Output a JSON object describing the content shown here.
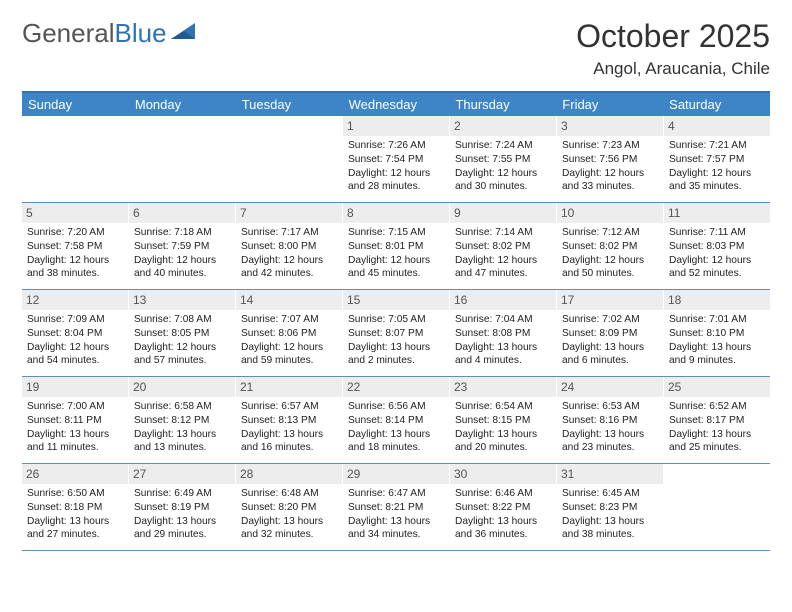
{
  "logo": {
    "text1": "General",
    "text2": "Blue"
  },
  "title": "October 2025",
  "location": "Angol, Araucania, Chile",
  "weekdays": [
    "Sunday",
    "Monday",
    "Tuesday",
    "Wednesday",
    "Thursday",
    "Friday",
    "Saturday"
  ],
  "colors": {
    "header_bar": "#3d85c6",
    "border": "#2e74b5",
    "daynum_bg": "#ededed"
  },
  "weeks": [
    [
      {
        "n": "",
        "empty": true
      },
      {
        "n": "",
        "empty": true
      },
      {
        "n": "",
        "empty": true
      },
      {
        "n": "1",
        "sr": "7:26 AM",
        "ss": "7:54 PM",
        "dl": "12 hours and 28 minutes."
      },
      {
        "n": "2",
        "sr": "7:24 AM",
        "ss": "7:55 PM",
        "dl": "12 hours and 30 minutes."
      },
      {
        "n": "3",
        "sr": "7:23 AM",
        "ss": "7:56 PM",
        "dl": "12 hours and 33 minutes."
      },
      {
        "n": "4",
        "sr": "7:21 AM",
        "ss": "7:57 PM",
        "dl": "12 hours and 35 minutes."
      }
    ],
    [
      {
        "n": "5",
        "sr": "7:20 AM",
        "ss": "7:58 PM",
        "dl": "12 hours and 38 minutes."
      },
      {
        "n": "6",
        "sr": "7:18 AM",
        "ss": "7:59 PM",
        "dl": "12 hours and 40 minutes."
      },
      {
        "n": "7",
        "sr": "7:17 AM",
        "ss": "8:00 PM",
        "dl": "12 hours and 42 minutes."
      },
      {
        "n": "8",
        "sr": "7:15 AM",
        "ss": "8:01 PM",
        "dl": "12 hours and 45 minutes."
      },
      {
        "n": "9",
        "sr": "7:14 AM",
        "ss": "8:02 PM",
        "dl": "12 hours and 47 minutes."
      },
      {
        "n": "10",
        "sr": "7:12 AM",
        "ss": "8:02 PM",
        "dl": "12 hours and 50 minutes."
      },
      {
        "n": "11",
        "sr": "7:11 AM",
        "ss": "8:03 PM",
        "dl": "12 hours and 52 minutes."
      }
    ],
    [
      {
        "n": "12",
        "sr": "7:09 AM",
        "ss": "8:04 PM",
        "dl": "12 hours and 54 minutes."
      },
      {
        "n": "13",
        "sr": "7:08 AM",
        "ss": "8:05 PM",
        "dl": "12 hours and 57 minutes."
      },
      {
        "n": "14",
        "sr": "7:07 AM",
        "ss": "8:06 PM",
        "dl": "12 hours and 59 minutes."
      },
      {
        "n": "15",
        "sr": "7:05 AM",
        "ss": "8:07 PM",
        "dl": "13 hours and 2 minutes."
      },
      {
        "n": "16",
        "sr": "7:04 AM",
        "ss": "8:08 PM",
        "dl": "13 hours and 4 minutes."
      },
      {
        "n": "17",
        "sr": "7:02 AM",
        "ss": "8:09 PM",
        "dl": "13 hours and 6 minutes."
      },
      {
        "n": "18",
        "sr": "7:01 AM",
        "ss": "8:10 PM",
        "dl": "13 hours and 9 minutes."
      }
    ],
    [
      {
        "n": "19",
        "sr": "7:00 AM",
        "ss": "8:11 PM",
        "dl": "13 hours and 11 minutes."
      },
      {
        "n": "20",
        "sr": "6:58 AM",
        "ss": "8:12 PM",
        "dl": "13 hours and 13 minutes."
      },
      {
        "n": "21",
        "sr": "6:57 AM",
        "ss": "8:13 PM",
        "dl": "13 hours and 16 minutes."
      },
      {
        "n": "22",
        "sr": "6:56 AM",
        "ss": "8:14 PM",
        "dl": "13 hours and 18 minutes."
      },
      {
        "n": "23",
        "sr": "6:54 AM",
        "ss": "8:15 PM",
        "dl": "13 hours and 20 minutes."
      },
      {
        "n": "24",
        "sr": "6:53 AM",
        "ss": "8:16 PM",
        "dl": "13 hours and 23 minutes."
      },
      {
        "n": "25",
        "sr": "6:52 AM",
        "ss": "8:17 PM",
        "dl": "13 hours and 25 minutes."
      }
    ],
    [
      {
        "n": "26",
        "sr": "6:50 AM",
        "ss": "8:18 PM",
        "dl": "13 hours and 27 minutes."
      },
      {
        "n": "27",
        "sr": "6:49 AM",
        "ss": "8:19 PM",
        "dl": "13 hours and 29 minutes."
      },
      {
        "n": "28",
        "sr": "6:48 AM",
        "ss": "8:20 PM",
        "dl": "13 hours and 32 minutes."
      },
      {
        "n": "29",
        "sr": "6:47 AM",
        "ss": "8:21 PM",
        "dl": "13 hours and 34 minutes."
      },
      {
        "n": "30",
        "sr": "6:46 AM",
        "ss": "8:22 PM",
        "dl": "13 hours and 36 minutes."
      },
      {
        "n": "31",
        "sr": "6:45 AM",
        "ss": "8:23 PM",
        "dl": "13 hours and 38 minutes."
      },
      {
        "n": "",
        "empty": true
      }
    ]
  ],
  "labels": {
    "sunrise": "Sunrise:",
    "sunset": "Sunset:",
    "daylight": "Daylight:"
  }
}
